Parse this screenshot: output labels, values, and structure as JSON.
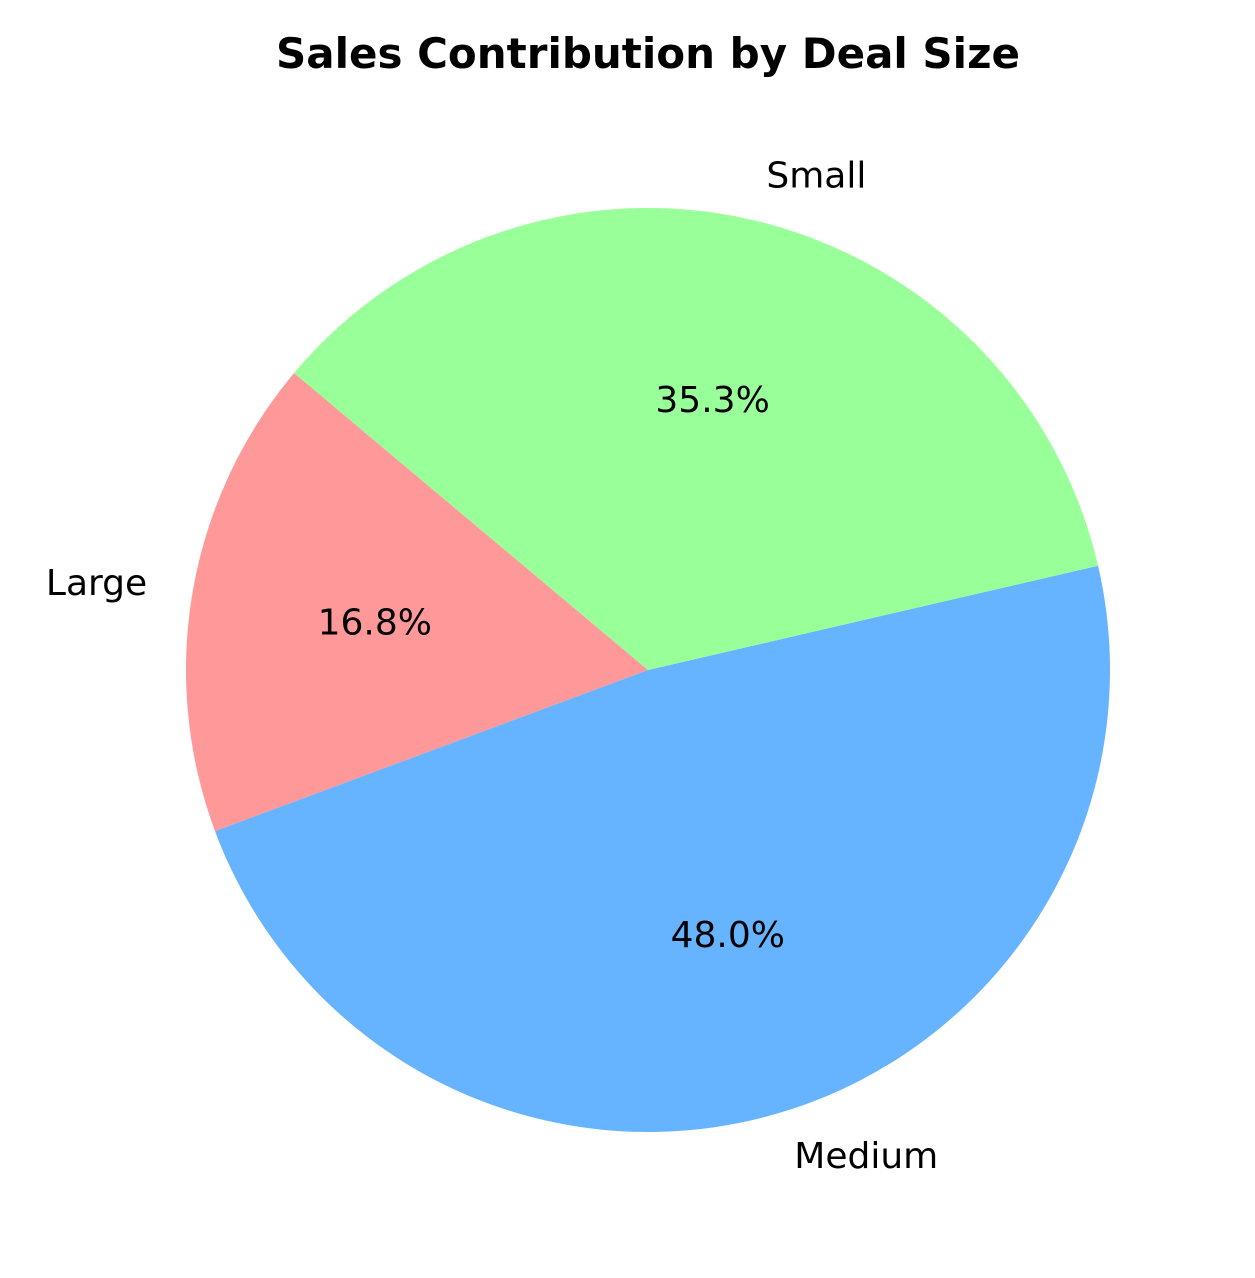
{
  "chart_data": {
    "type": "pie",
    "title": "Sales Contribution by Deal Size",
    "start_angle_deg": 140,
    "direction": "counterclockwise",
    "legend": "none",
    "slices": [
      {
        "label": "Large",
        "value": 16.8,
        "pct_text": "16.8%",
        "color": "#ff9999"
      },
      {
        "label": "Medium",
        "value": 48.0,
        "pct_text": "48.0%",
        "color": "#66b3ff"
      },
      {
        "label": "Small",
        "value": 35.3,
        "pct_text": "35.3%",
        "color": "#99ff99"
      }
    ]
  }
}
